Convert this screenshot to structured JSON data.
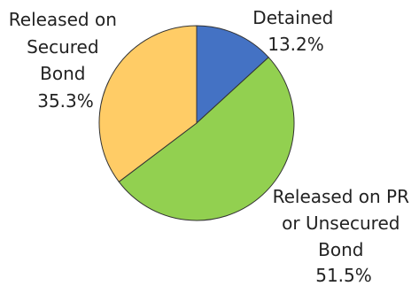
{
  "chart_data": {
    "type": "pie",
    "title": "",
    "slices": [
      {
        "name": "Detained",
        "value": 13.2,
        "label": "13.2%",
        "color": "#4472C4",
        "label_lines": [
          "Detained",
          "13.2%"
        ]
      },
      {
        "name": "Released on PR or Unsecured Bond",
        "value": 51.5,
        "label": "51.5%",
        "color": "#92D050",
        "label_lines": [
          "Released on PR",
          "or Unsecured",
          "Bond",
          "51.5%"
        ]
      },
      {
        "name": "Released on Secured Bond",
        "value": 35.3,
        "label": "35.3%",
        "color": "#FFCC66",
        "label_lines": [
          "Released on",
          "Secured",
          "Bond",
          "35.3%"
        ]
      }
    ],
    "start_angle_deg": 0,
    "direction": "clockwise",
    "legend": "none",
    "outline_color": "#333333"
  }
}
